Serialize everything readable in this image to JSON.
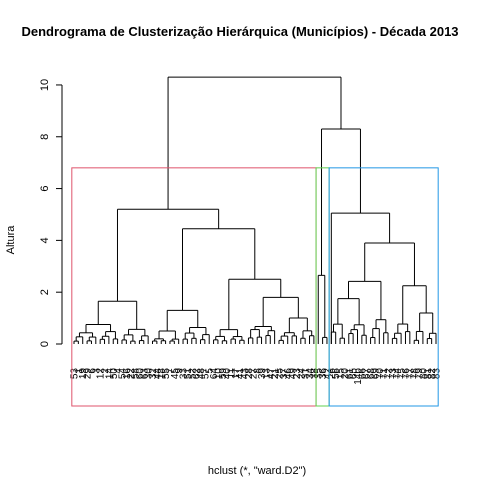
{
  "chart_data": {
    "type": "dendrogram",
    "title": "Dendrograma de Clusterização Hierárquica (Municípios) - Década 2013",
    "xlabel": "hclust (*, \"ward.D2\")",
    "ylabel": "Altura",
    "ylim": [
      0,
      10.5
    ],
    "yticks": [
      0,
      2,
      4,
      6,
      8,
      10
    ],
    "merge_heights": {
      "root": 10.3,
      "left_major": 5.2,
      "left_sub_a": 1.65,
      "left_sub_b": 4.45,
      "left_sub_b1": 1.3,
      "left_sub_b2": 2.5,
      "left_sub_b2a": 1.8,
      "right_major": 8.3,
      "right_sub_a": 2.65,
      "right_sub_b": 5.05,
      "right_sub_b1": 3.9,
      "right_sub_b2": 2.25,
      "right_sub_b3": 1.75
    },
    "clusters": [
      {
        "id": 1,
        "color": "#DF536B",
        "leaf_range": [
          0,
          55
        ]
      },
      {
        "id": 2,
        "color": "#61D04F",
        "leaf_range": [
          56,
          58
        ]
      },
      {
        "id": 3,
        "color": "#2297E6",
        "leaf_range": [
          59,
          83
        ]
      }
    ],
    "leaf_labels": [
      "53",
      "1",
      "19",
      "29",
      "6",
      "3",
      "12",
      "2",
      "14",
      "50",
      "4",
      "54",
      "16",
      "22",
      "58",
      "60",
      "63",
      "30",
      "32",
      "44",
      "18",
      "55",
      "7",
      "45",
      "9",
      "33",
      "51",
      "52",
      "62",
      "48",
      "57",
      "5",
      "64",
      "10",
      "59",
      "40",
      "11",
      "17",
      "41",
      "43",
      "28",
      "27",
      "8",
      "39",
      "13",
      "47",
      "21",
      "25",
      "37",
      "46",
      "49",
      "23",
      "24",
      "31",
      "34",
      "38",
      "35",
      "36",
      "42",
      "26",
      "56",
      "15",
      "20",
      "61",
      "65",
      "14b",
      "66",
      "67",
      "68",
      "69",
      "70",
      "71",
      "72",
      "73",
      "74",
      "75",
      "76",
      "77",
      "78",
      "79",
      "80",
      "81",
      "82",
      "83"
    ],
    "grid": false
  }
}
